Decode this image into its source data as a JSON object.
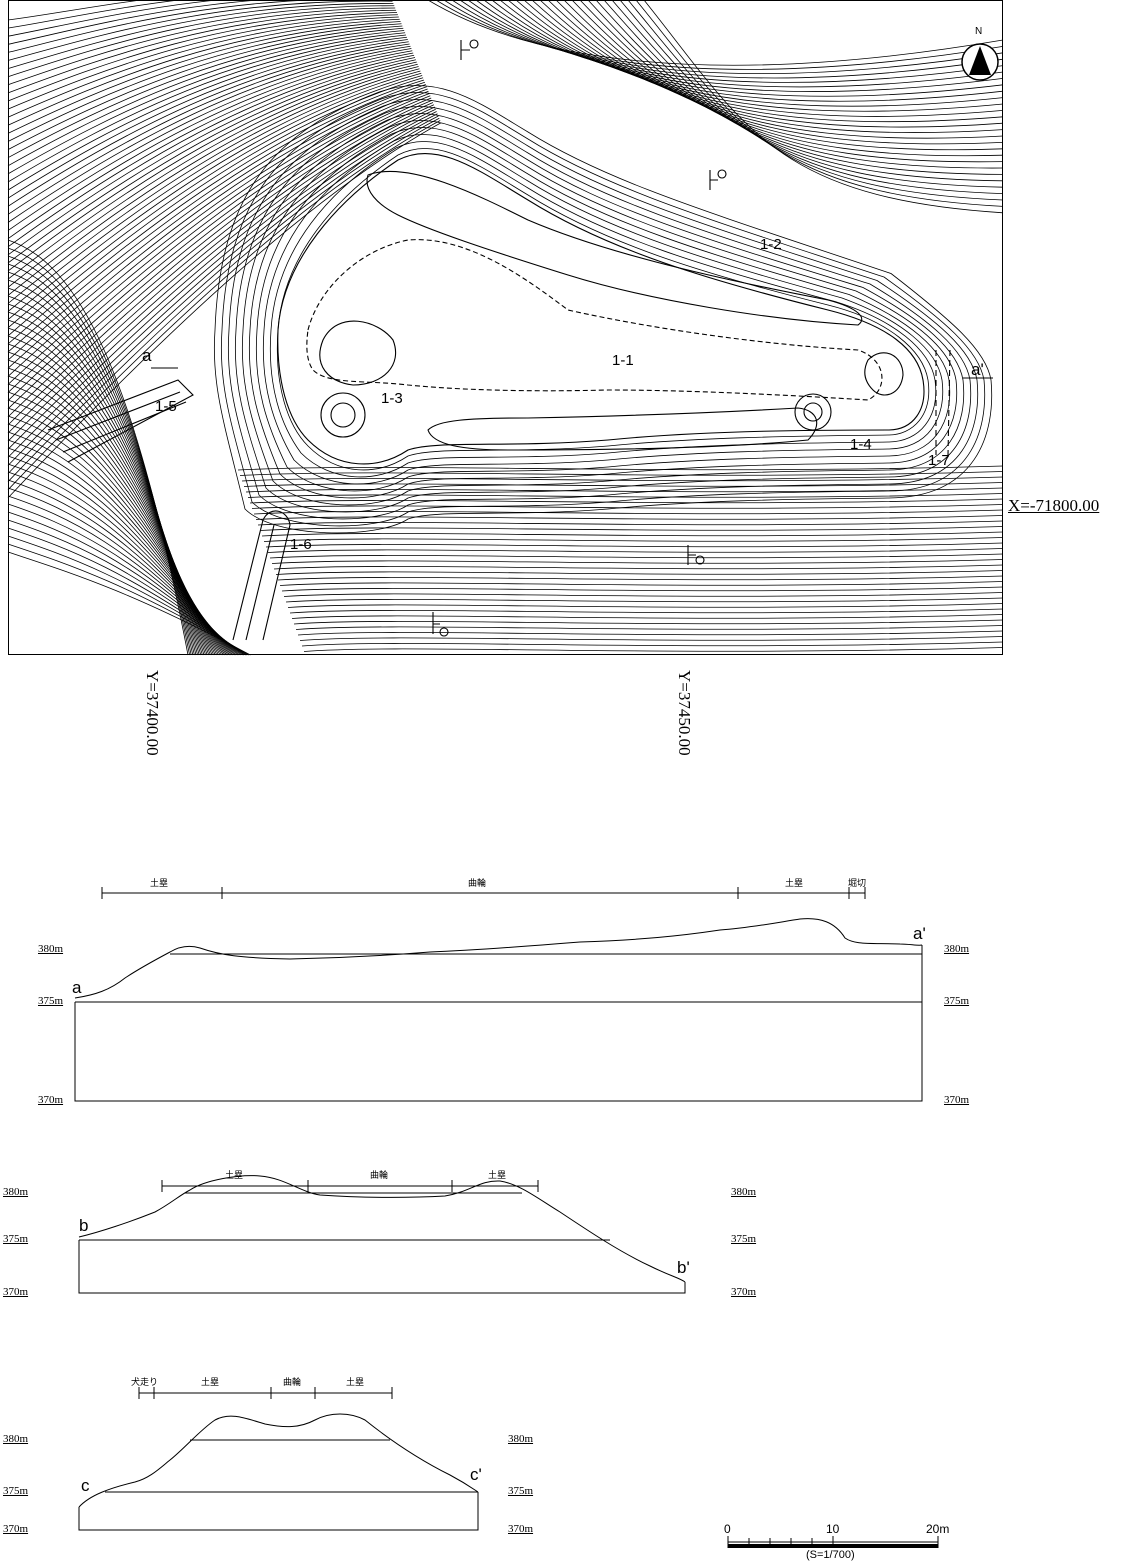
{
  "map": {
    "north": "N",
    "coord_x": "X=-71800.00",
    "coord_y1": "Y=37400.00",
    "coord_y2": "Y=37450.00",
    "labels": {
      "l11": "1-1",
      "l12": "1-2",
      "l13": "1-3",
      "l14": "1-4",
      "l15": "1-5",
      "l16": "1-6",
      "l17": "1-7",
      "a": "a",
      "a_prime": "a'"
    }
  },
  "section_a": {
    "start": "a",
    "end": "a'",
    "zones": [
      "土塁",
      "曲輪",
      "土塁",
      "堀切"
    ],
    "elev_left": [
      "380m",
      "375m",
      "370m"
    ],
    "elev_right": [
      "380m",
      "375m",
      "370m"
    ]
  },
  "section_b": {
    "start": "b",
    "end": "b'",
    "zones": [
      "土塁",
      "曲輪",
      "土塁"
    ],
    "elev_left": [
      "380m",
      "375m",
      "370m"
    ],
    "elev_right": [
      "380m",
      "375m",
      "370m"
    ]
  },
  "section_c": {
    "start": "c",
    "end": "c'",
    "zones": [
      "犬走り",
      "土塁",
      "曲輪",
      "土塁"
    ],
    "elev_left": [
      "380m",
      "375m",
      "370m"
    ],
    "elev_right": [
      "380m",
      "375m",
      "370m"
    ]
  },
  "scale": {
    "t0": "0",
    "t10": "10",
    "t20": "20m",
    "ratio": "(S=1/700)"
  }
}
